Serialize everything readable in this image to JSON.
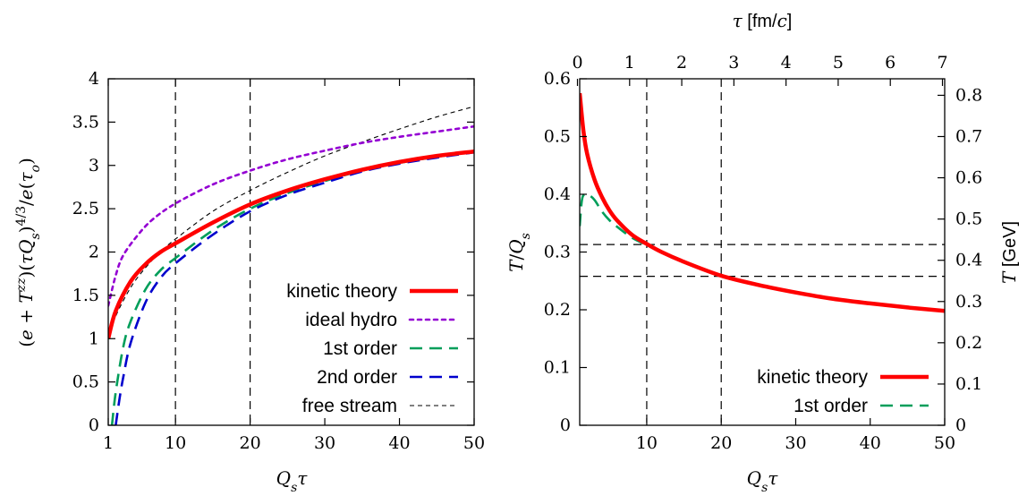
{
  "chart_data": [
    {
      "type": "line",
      "xlabel": "Q_sτ",
      "ylabel": "(e + T^zz)(τQ_s)^4/3 / e(τ_o)",
      "xlim": [
        1,
        50
      ],
      "ylim": [
        0,
        4
      ],
      "xticks": [
        "1",
        "10",
        "20",
        "30",
        "40",
        "50"
      ],
      "xtick_values": [
        1,
        10,
        20,
        30,
        40,
        50
      ],
      "yticks": [
        "0",
        "0.5",
        "1",
        "1.5",
        "2",
        "2.5",
        "3",
        "3.5",
        "4"
      ],
      "ytick_values": [
        0,
        0.5,
        1,
        1.5,
        2,
        2.5,
        3,
        3.5,
        4
      ],
      "vlines": [
        10,
        20
      ],
      "legend_position": "bottom-right",
      "series": [
        {
          "name": "kinetic theory",
          "color": "#ff0000",
          "style": "solid",
          "x": [
            1,
            2,
            4,
            6,
            8,
            10,
            15,
            20,
            25,
            30,
            35,
            40,
            45,
            50
          ],
          "y": [
            1.0,
            1.32,
            1.66,
            1.86,
            2.0,
            2.1,
            2.34,
            2.55,
            2.71,
            2.84,
            2.95,
            3.04,
            3.11,
            3.16
          ]
        },
        {
          "name": "ideal hydro",
          "color": "#9400d3",
          "style": "dot",
          "x": [
            1,
            2,
            3,
            5,
            7,
            10,
            15,
            20,
            25,
            30,
            35,
            40,
            45,
            50
          ],
          "y": [
            1.38,
            1.73,
            1.96,
            2.2,
            2.38,
            2.56,
            2.78,
            2.94,
            3.07,
            3.17,
            3.26,
            3.33,
            3.39,
            3.45
          ]
        },
        {
          "name": "1st order",
          "color": "#009e5a",
          "style": "dash",
          "x": [
            1.5,
            2,
            3,
            4,
            6,
            8,
            10,
            15,
            20,
            25,
            30,
            35,
            40,
            45,
            50
          ],
          "y": [
            0.0,
            0.38,
            0.9,
            1.2,
            1.57,
            1.79,
            1.93,
            2.25,
            2.5,
            2.68,
            2.82,
            2.94,
            3.03,
            3.1,
            3.16
          ]
        },
        {
          "name": "2nd order",
          "color": "#0000cd",
          "style": "dash",
          "x": [
            2,
            2.5,
            3,
            4,
            6,
            8,
            10,
            15,
            20,
            25,
            30,
            35,
            40,
            45,
            50
          ],
          "y": [
            0.0,
            0.3,
            0.55,
            0.95,
            1.42,
            1.7,
            1.87,
            2.2,
            2.47,
            2.66,
            2.8,
            2.93,
            3.02,
            3.09,
            3.15
          ]
        },
        {
          "name": "free stream",
          "color": "#000000",
          "style": "thin-dash",
          "x": [
            1,
            2,
            4,
            6,
            8,
            10,
            15,
            20,
            25,
            30,
            35,
            40,
            45,
            50
          ],
          "y": [
            1.0,
            1.26,
            1.59,
            1.82,
            2.0,
            2.15,
            2.47,
            2.71,
            2.92,
            3.11,
            3.27,
            3.42,
            3.56,
            3.68
          ]
        }
      ]
    },
    {
      "type": "line",
      "xlabel": "Q_sτ",
      "ylabel": "T/Q_s",
      "x2label": "τ [fm/c]",
      "y2label": "T [GeV]",
      "xlim": [
        1,
        50
      ],
      "ylim": [
        0,
        0.6
      ],
      "xticks": [
        "10",
        "20",
        "30",
        "40",
        "50"
      ],
      "xtick_values": [
        10,
        20,
        30,
        40,
        50
      ],
      "yticks": [
        "0",
        "0.1",
        "0.2",
        "0.3",
        "0.4",
        "0.5",
        "0.6"
      ],
      "ytick_values": [
        0,
        0.1,
        0.2,
        0.3,
        0.4,
        0.5,
        0.6
      ],
      "x2ticks": [
        "0",
        "1",
        "2",
        "3",
        "4",
        "5",
        "6",
        "7"
      ],
      "x2tick_values": [
        0.7,
        7.7,
        14.7,
        21.7,
        28.7,
        35.7,
        42.7,
        49.7
      ],
      "y2ticks": [
        "0",
        "0.1",
        "0.2",
        "0.3",
        "0.4",
        "0.5",
        "0.6",
        "0.7",
        "0.8"
      ],
      "y2tick_values": [
        0,
        0.0714,
        0.1429,
        0.2143,
        0.2857,
        0.3571,
        0.4286,
        0.5,
        0.5714
      ],
      "vlines": [
        10,
        20
      ],
      "hlines": [
        0.313,
        0.258
      ],
      "legend_position": "bottom-right",
      "series": [
        {
          "name": "kinetic theory",
          "color": "#ff0000",
          "style": "solid",
          "x": [
            1,
            1.5,
            2,
            3,
            4,
            5,
            6,
            8,
            10,
            12,
            15,
            20,
            25,
            30,
            35,
            40,
            45,
            50
          ],
          "y": [
            0.575,
            0.51,
            0.47,
            0.425,
            0.395,
            0.372,
            0.355,
            0.33,
            0.314,
            0.3,
            0.283,
            0.259,
            0.243,
            0.23,
            0.219,
            0.211,
            0.204,
            0.198
          ]
        },
        {
          "name": "1st order",
          "color": "#009e5a",
          "style": "dash",
          "x": [
            1,
            1.3,
            1.7,
            2.3,
            3,
            4,
            5,
            6,
            8,
            10,
            12,
            15,
            20,
            25,
            30,
            35,
            40,
            45,
            50
          ],
          "y": [
            0.345,
            0.39,
            0.4,
            0.398,
            0.39,
            0.37,
            0.355,
            0.344,
            0.325,
            0.312,
            0.3,
            0.283,
            0.259,
            0.243,
            0.23,
            0.219,
            0.211,
            0.204,
            0.198
          ]
        }
      ]
    }
  ]
}
